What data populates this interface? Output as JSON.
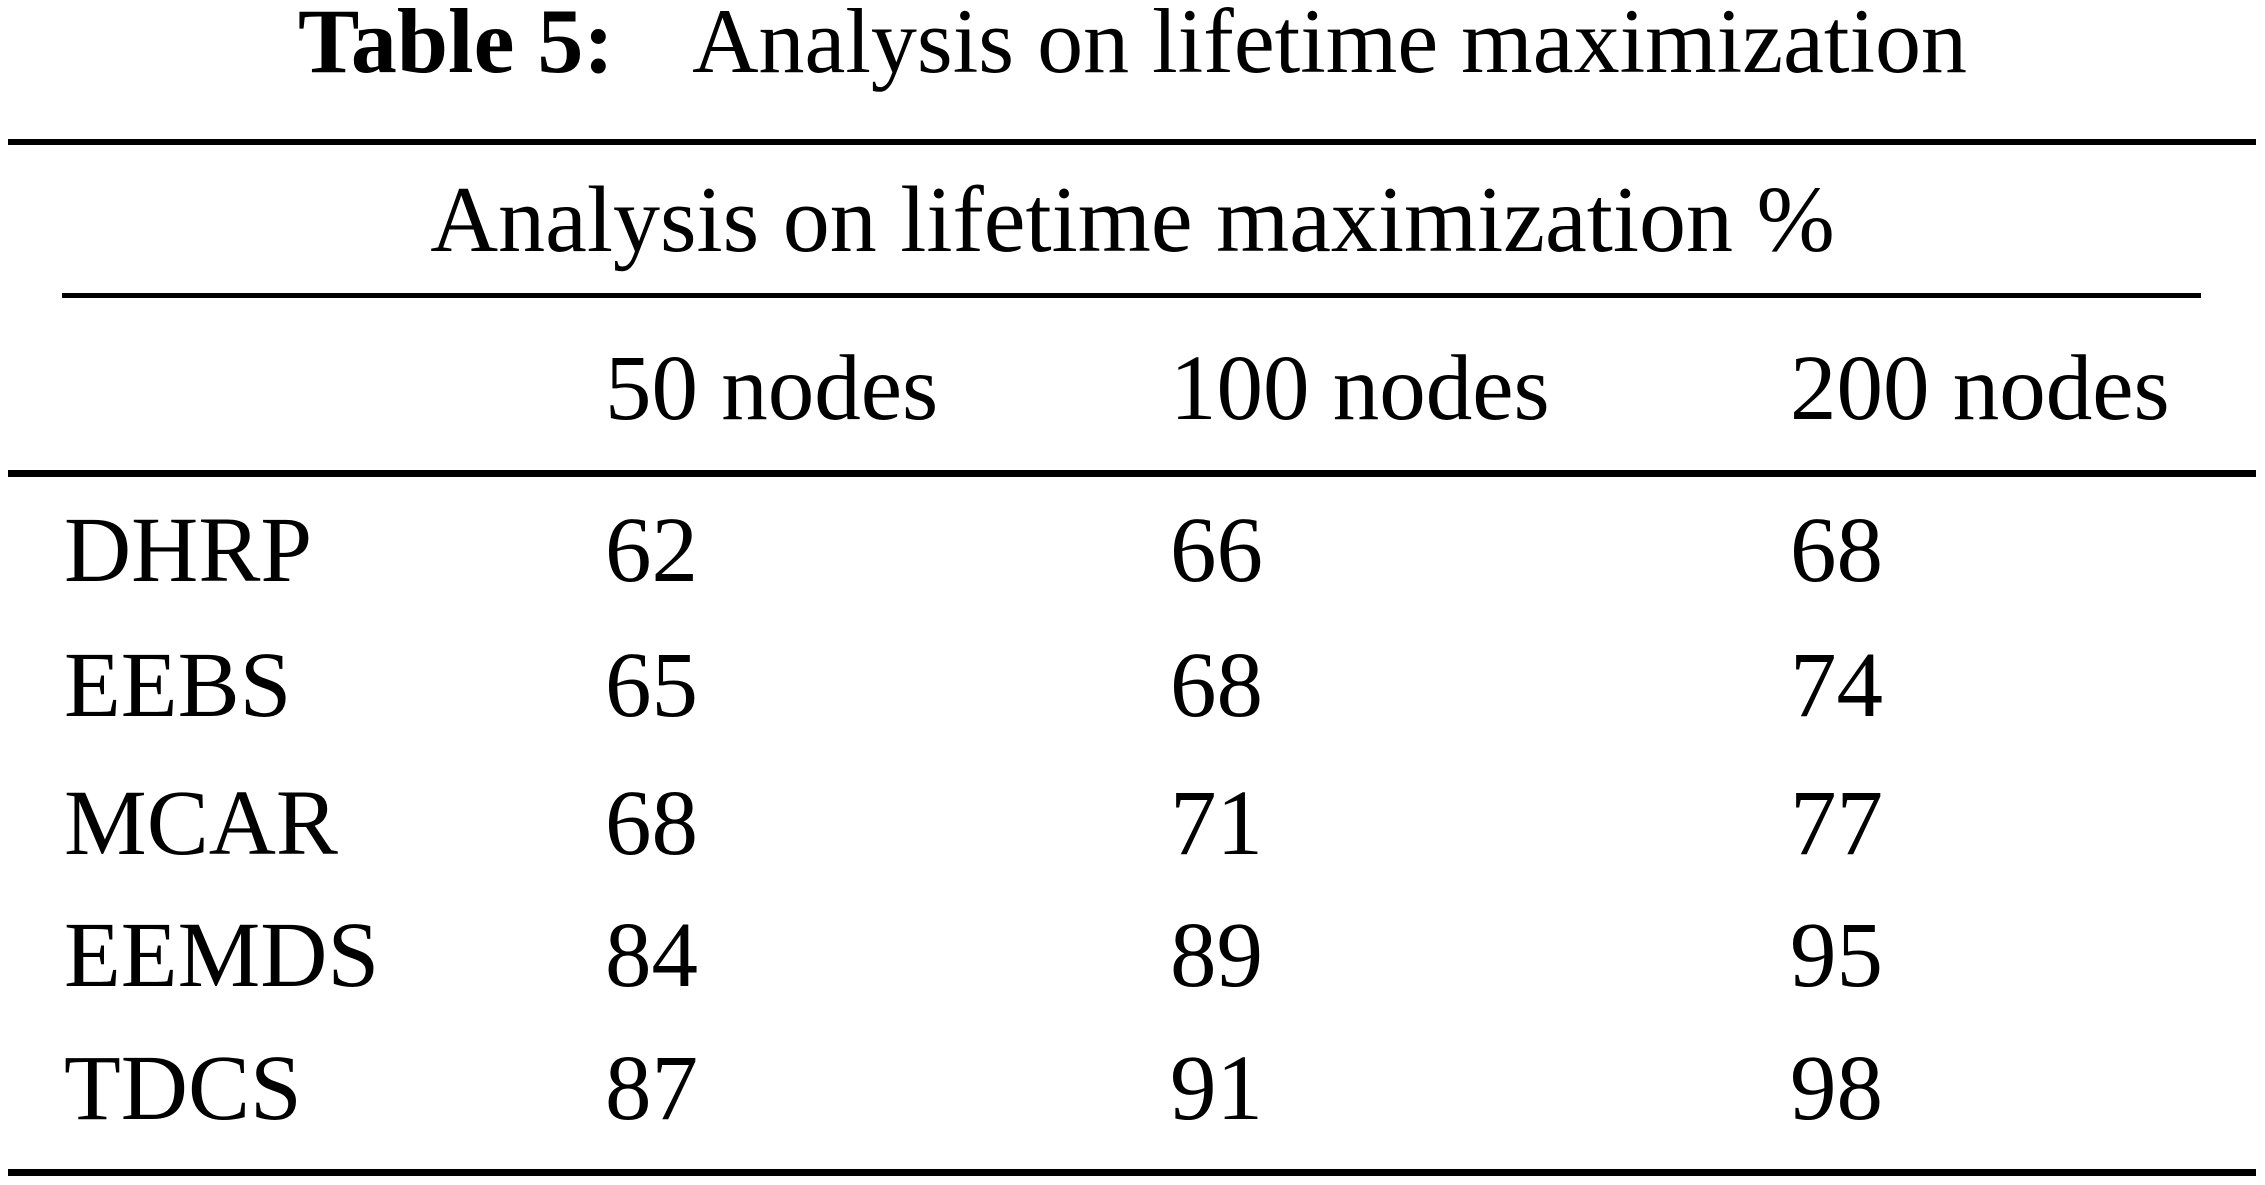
{
  "caption": {
    "label": "Table 5:",
    "text": "Analysis on lifetime maximization"
  },
  "table": {
    "title": "Analysis on lifetime maximization %",
    "columns": [
      "",
      "50 nodes",
      "100 nodes",
      "200 nodes"
    ],
    "rows": [
      {
        "label": "DHRP",
        "values": [
          "62",
          "66",
          "68"
        ]
      },
      {
        "label": "EEBS",
        "values": [
          "65",
          "68",
          "74"
        ]
      },
      {
        "label": "MCAR",
        "values": [
          "68",
          "71",
          "77"
        ]
      },
      {
        "label": "EEMDS",
        "values": [
          "84",
          "89",
          "95"
        ]
      },
      {
        "label": "TDCS",
        "values": [
          "87",
          "91",
          "98"
        ]
      }
    ]
  },
  "colors": {
    "text": "#000000",
    "background": "#ffffff",
    "rule": "#000000"
  },
  "chart_data": {
    "type": "table",
    "caption": "Table 5: Analysis on lifetime maximization",
    "title": "Analysis on lifetime maximization %",
    "categories": [
      "DHRP",
      "EEBS",
      "MCAR",
      "EEMDS",
      "TDCS"
    ],
    "series": [
      {
        "name": "50 nodes",
        "values": [
          62,
          65,
          68,
          84,
          87
        ]
      },
      {
        "name": "100 nodes",
        "values": [
          66,
          68,
          71,
          89,
          91
        ]
      },
      {
        "name": "200 nodes",
        "values": [
          68,
          74,
          77,
          95,
          98
        ]
      }
    ]
  }
}
